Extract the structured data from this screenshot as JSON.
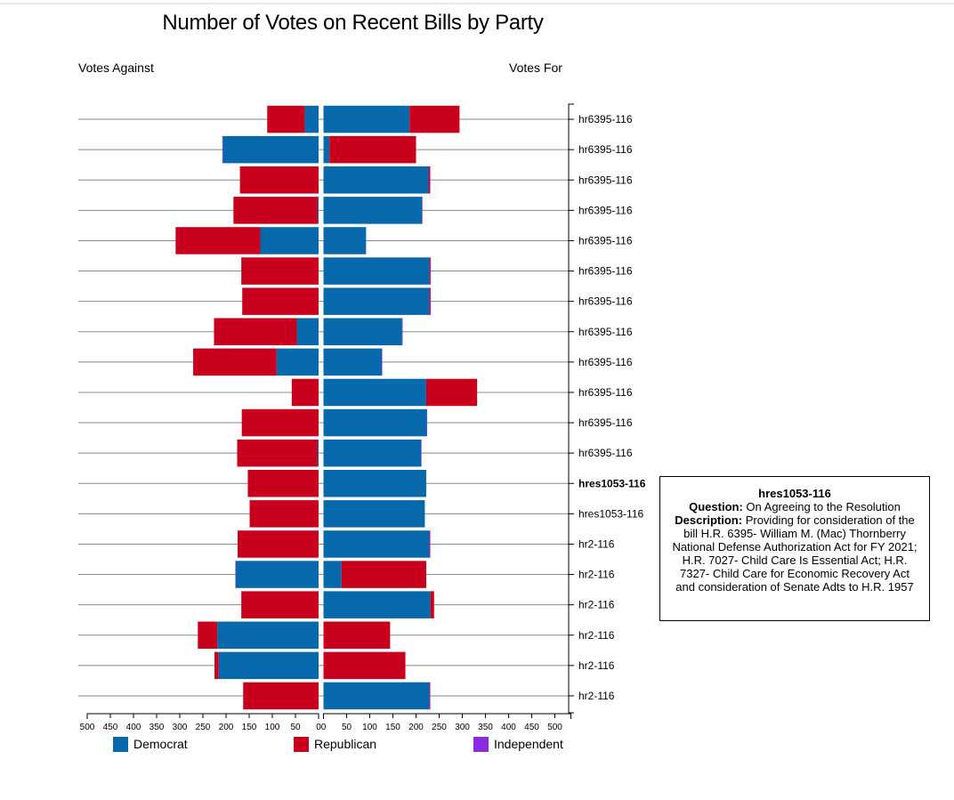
{
  "chart_data": {
    "type": "bar",
    "title": "Number of Votes on Recent Bills by Party",
    "left_label": "Votes Against",
    "right_label": "Votes For",
    "categories": [
      "hr6395-116",
      "hr6395-116",
      "hr6395-116",
      "hr6395-116",
      "hr6395-116",
      "hr6395-116",
      "hr6395-116",
      "hr6395-116",
      "hr6395-116",
      "hr6395-116",
      "hr6395-116",
      "hr6395-116",
      "hres1053-116",
      "hres1053-116",
      "hr2-116",
      "hr2-116",
      "hr2-116",
      "hr2-116",
      "hr2-116",
      "hr2-116"
    ],
    "highlighted_index": 12,
    "against": {
      "series": [
        {
          "name": "Democrat",
          "values": [
            30,
            207,
            0,
            2,
            126,
            0,
            0,
            47,
            91,
            0,
            0,
            2,
            0,
            0,
            0,
            179,
            0,
            219,
            216,
            0
          ]
        },
        {
          "name": "Republican",
          "values": [
            81,
            0,
            170,
            182,
            183,
            167,
            165,
            179,
            180,
            58,
            166,
            174,
            153,
            149,
            175,
            0,
            167,
            42,
            9,
            163
          ]
        },
        {
          "name": "Independent",
          "values": [
            0,
            1,
            0,
            0,
            0,
            0,
            0,
            0,
            0,
            0,
            0,
            0,
            0,
            0,
            0,
            1,
            0,
            0,
            0,
            0
          ]
        }
      ]
    },
    "for": {
      "series": [
        {
          "name": "Democrat",
          "values": [
            186,
            13,
            227,
            213,
            92,
            229,
            229,
            170,
            126,
            222,
            223,
            211,
            222,
            219,
            229,
            39,
            231,
            0,
            0,
            229
          ]
        },
        {
          "name": "Republican",
          "values": [
            108,
            187,
            3,
            0,
            0,
            2,
            2,
            0,
            0,
            110,
            0,
            0,
            0,
            0,
            1,
            183,
            8,
            144,
            177,
            1
          ]
        },
        {
          "name": "Independent",
          "values": [
            0,
            0,
            1,
            1,
            0,
            1,
            1,
            1,
            1,
            0,
            1,
            1,
            0,
            0,
            1,
            0,
            0,
            0,
            0,
            1
          ]
        }
      ]
    },
    "xlim": [
      0,
      500
    ],
    "ticks": [
      0,
      50,
      100,
      150,
      200,
      250,
      300,
      350,
      400,
      450,
      500
    ],
    "legend_position": "bottom",
    "colors": {
      "Democrat": "#0868ac",
      "Republican": "#c8001e",
      "Independent": "#8a2be2",
      "gridline": "#888888"
    }
  },
  "legend": [
    {
      "name": "Democrat",
      "color": "#0868ac"
    },
    {
      "name": "Republican",
      "color": "#c8001e"
    },
    {
      "name": "Independent",
      "color": "#8a2be2"
    }
  ],
  "tooltip": {
    "title": "hres1053-116",
    "question_label": "Question:",
    "question": "On Agreeing to the Resolution",
    "description_label": "Description:",
    "description": "Providing for consideration of the bill H.R. 6395- William M. (Mac) Thornberry National Defense Authorization Act for FY 2021; H.R. 7027- Child Care Is Essential Act; H.R. 7327- Child Care for Economic Recovery Act and consideration of Senate Adts to H.R. 1957"
  }
}
